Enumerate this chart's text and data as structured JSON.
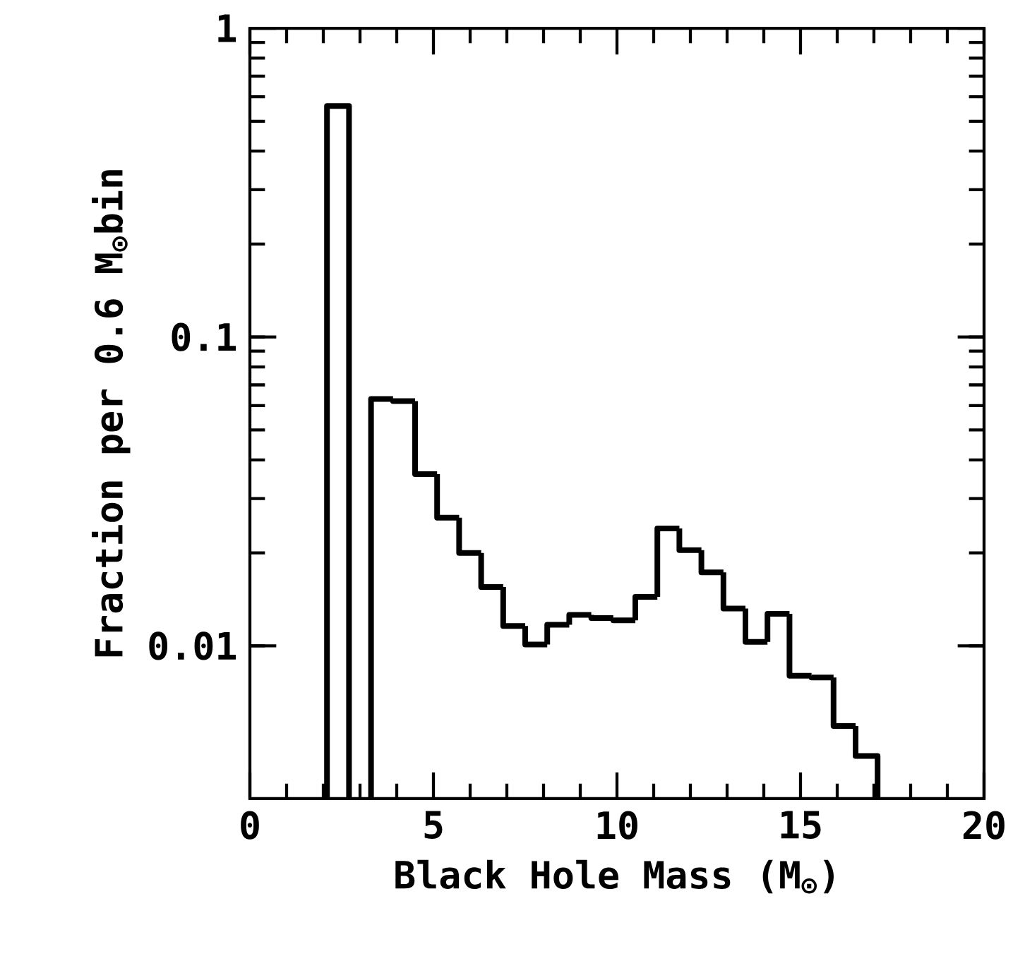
{
  "chart_data": {
    "type": "histogram",
    "xlabel": "Black Hole Mass (M$_{⊙}$)",
    "ylabel": "Fraction per 0.6 M$_{⊙}$bin",
    "bins": [
      2.1,
      2.7,
      3.3,
      3.9,
      4.5,
      5.1,
      5.7,
      6.3,
      6.9,
      7.5,
      8.1,
      8.7,
      9.3,
      9.9,
      10.5,
      11.1,
      11.7,
      12.3,
      12.9,
      13.5,
      14.1,
      14.7,
      15.3,
      15.9,
      16.5,
      17.1
    ],
    "values": [
      0.56,
      null,
      0.063,
      0.062,
      0.036,
      0.026,
      0.02,
      0.0155,
      0.0116,
      0.0101,
      0.0117,
      0.0126,
      0.0123,
      0.0121,
      0.0144,
      0.024,
      0.0204,
      0.0173,
      0.0132,
      0.0103,
      0.0127,
      0.008,
      0.0079,
      0.0055,
      0.0044
    ],
    "color": "#000000",
    "xlim": [
      0,
      20
    ],
    "ylim": [
      0.0032,
      1
    ],
    "xticks": [
      0,
      5,
      10,
      15,
      20
    ],
    "yticks": [
      0.01,
      0.1,
      1
    ],
    "log": "y"
  }
}
